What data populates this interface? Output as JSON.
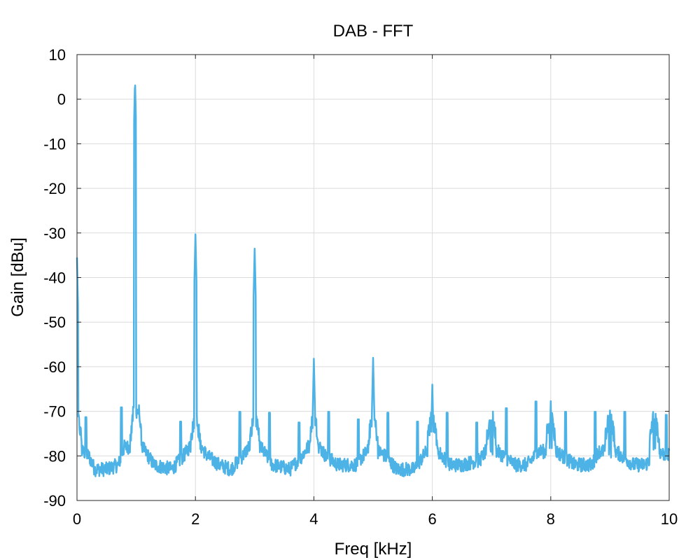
{
  "chart_data": {
    "type": "line",
    "title": "DAB - FFT",
    "xlabel": "Freq [kHz]",
    "ylabel": "Gain [dBu]",
    "xlim": [
      0,
      10
    ],
    "ylim": [
      -90,
      10
    ],
    "xticks": [
      0,
      2,
      4,
      6,
      8,
      10
    ],
    "yticks": [
      10,
      0,
      -10,
      -20,
      -30,
      -40,
      -50,
      -60,
      -70,
      -80,
      -90
    ],
    "grid": true,
    "line_color": "#4DB3E6",
    "series": [
      {
        "noise_floor": [
          [
            0,
            -80
          ],
          [
            0.1,
            -79
          ],
          [
            0.2,
            -80
          ],
          [
            0.3,
            -83
          ],
          [
            0.5,
            -83
          ],
          [
            0.7,
            -82
          ],
          [
            0.8,
            -78
          ],
          [
            0.9,
            -78
          ],
          [
            0.95,
            -70
          ],
          [
            1.05,
            -70
          ],
          [
            1.1,
            -78
          ],
          [
            1.2,
            -80
          ],
          [
            1.3,
            -82
          ],
          [
            1.6,
            -83
          ],
          [
            1.8,
            -80
          ],
          [
            1.9,
            -78
          ],
          [
            2.1,
            -78
          ],
          [
            2.2,
            -80
          ],
          [
            2.4,
            -82
          ],
          [
            2.6,
            -83
          ],
          [
            2.8,
            -80
          ],
          [
            2.9,
            -78
          ],
          [
            3.1,
            -78
          ],
          [
            3.2,
            -80
          ],
          [
            3.3,
            -82
          ],
          [
            3.6,
            -83
          ],
          [
            3.8,
            -80
          ],
          [
            3.9,
            -78
          ],
          [
            4.1,
            -78
          ],
          [
            4.2,
            -80
          ],
          [
            4.4,
            -82
          ],
          [
            4.7,
            -82
          ],
          [
            4.9,
            -79
          ],
          [
            5.1,
            -79
          ],
          [
            5.2,
            -80
          ],
          [
            5.4,
            -83
          ],
          [
            5.7,
            -83
          ],
          [
            5.9,
            -79
          ],
          [
            6.1,
            -79
          ],
          [
            6.3,
            -82
          ],
          [
            6.5,
            -82
          ],
          [
            6.8,
            -81
          ],
          [
            6.9,
            -79
          ],
          [
            7.1,
            -79
          ],
          [
            7.2,
            -80
          ],
          [
            7.4,
            -82
          ],
          [
            7.6,
            -82
          ],
          [
            7.8,
            -79
          ],
          [
            8.1,
            -79
          ],
          [
            8.2,
            -80
          ],
          [
            8.4,
            -82
          ],
          [
            8.7,
            -82
          ],
          [
            8.8,
            -79
          ],
          [
            9.1,
            -79
          ],
          [
            9.2,
            -80
          ],
          [
            9.4,
            -82
          ],
          [
            9.6,
            -82
          ],
          [
            9.8,
            -79
          ],
          [
            10,
            -80
          ]
        ],
        "peaks": [
          {
            "x": 0.0,
            "y": -35.5
          },
          {
            "x": 0.98,
            "y": 4.5
          },
          {
            "x": 2.0,
            "y": -30.3
          },
          {
            "x": 3.0,
            "y": -33.5
          },
          {
            "x": 4.0,
            "y": -58.2
          },
          {
            "x": 5.0,
            "y": -58.0
          },
          {
            "x": 6.0,
            "y": -64.0
          },
          {
            "x": 7.0,
            "y": -72.0
          },
          {
            "x": 8.0,
            "y": -67.7
          },
          {
            "x": 9.0,
            "y": -69.8
          },
          {
            "x": 9.75,
            "y": -70.0
          }
        ],
        "spurs": [
          {
            "x": 0.15,
            "y": -73.5
          },
          {
            "x": 0.75,
            "y": -71.3
          },
          {
            "x": 1.75,
            "y": -74.5
          },
          {
            "x": 2.75,
            "y": -72.3
          },
          {
            "x": 3.25,
            "y": -72.5
          },
          {
            "x": 3.75,
            "y": -74.7
          },
          {
            "x": 4.25,
            "y": -72.3
          },
          {
            "x": 4.75,
            "y": -74.0
          },
          {
            "x": 5.25,
            "y": -72.5
          },
          {
            "x": 5.75,
            "y": -74.5
          },
          {
            "x": 6.25,
            "y": -72.5
          },
          {
            "x": 6.75,
            "y": -74.7
          },
          {
            "x": 7.25,
            "y": -71.5
          },
          {
            "x": 7.75,
            "y": -70.0
          },
          {
            "x": 8.25,
            "y": -72.3
          },
          {
            "x": 8.75,
            "y": -72.3
          },
          {
            "x": 9.25,
            "y": -72.3
          },
          {
            "x": 9.95,
            "y": -73.0
          }
        ]
      }
    ]
  }
}
